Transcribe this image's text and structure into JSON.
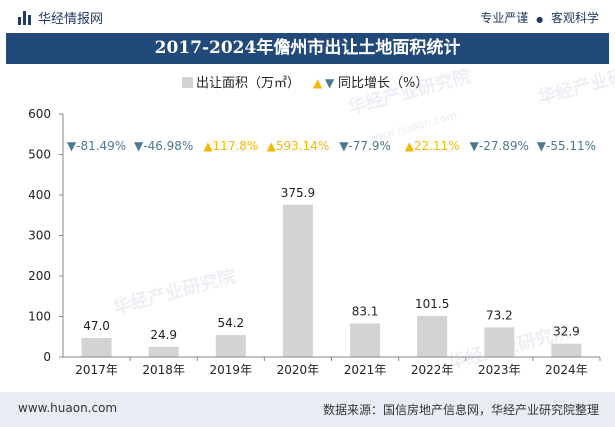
{
  "header": {
    "logo_text": "华经情报网",
    "tagline_left": "专业严谨",
    "tagline_sep": "●",
    "tagline_right": "客观科学"
  },
  "watermark": {
    "text": "华经产业研究院",
    "url": "www.huaon.com"
  },
  "footer": {
    "website": "www.huaon.com",
    "source": "数据来源：国信房地产信息网，华经产业研究院整理"
  },
  "colors": {
    "bar": "#d3d3d3",
    "title_bg": "#21497a",
    "up": "#f5b800",
    "down": "#4a7a8c",
    "axis": "#888888"
  },
  "chart_data": {
    "type": "bar",
    "title": "2017-2024年儋州市出让土地面积统计",
    "categories": [
      "2017年",
      "2018年",
      "2019年",
      "2020年",
      "2021年",
      "2022年",
      "2023年",
      "2024年"
    ],
    "series": [
      {
        "name": "出让面积（万㎡）",
        "values": [
          47.0,
          24.9,
          54.2,
          375.9,
          83.1,
          101.5,
          73.2,
          32.9
        ],
        "labels": [
          "47.0",
          "24.9",
          "54.2",
          "375.9",
          "83.1",
          "101.5",
          "73.2",
          "32.9"
        ]
      }
    ],
    "growth": {
      "name": "同比增长（%）",
      "values": [
        -81.49,
        -46.98,
        117.8,
        593.14,
        -77.9,
        22.11,
        -27.89,
        -55.11
      ],
      "labels": [
        "-81.49%",
        "-46.98%",
        "117.8%",
        "593.14%",
        "-77.9%",
        "22.11%",
        "-27.89%",
        "-55.11%"
      ],
      "up_marker": "▲",
      "down_marker": "▼"
    },
    "legend": {
      "bar_label": "出让面积（万㎡）",
      "growth_label": "同比增长（%）",
      "placement": "top-center"
    },
    "ylim": [
      0,
      600
    ],
    "yticks": [
      0,
      100,
      200,
      300,
      400,
      500,
      600
    ],
    "ytick_labels": [
      "0",
      "100",
      "200",
      "300",
      "400",
      "500",
      "600"
    ],
    "xlabel": "",
    "ylabel": ""
  }
}
